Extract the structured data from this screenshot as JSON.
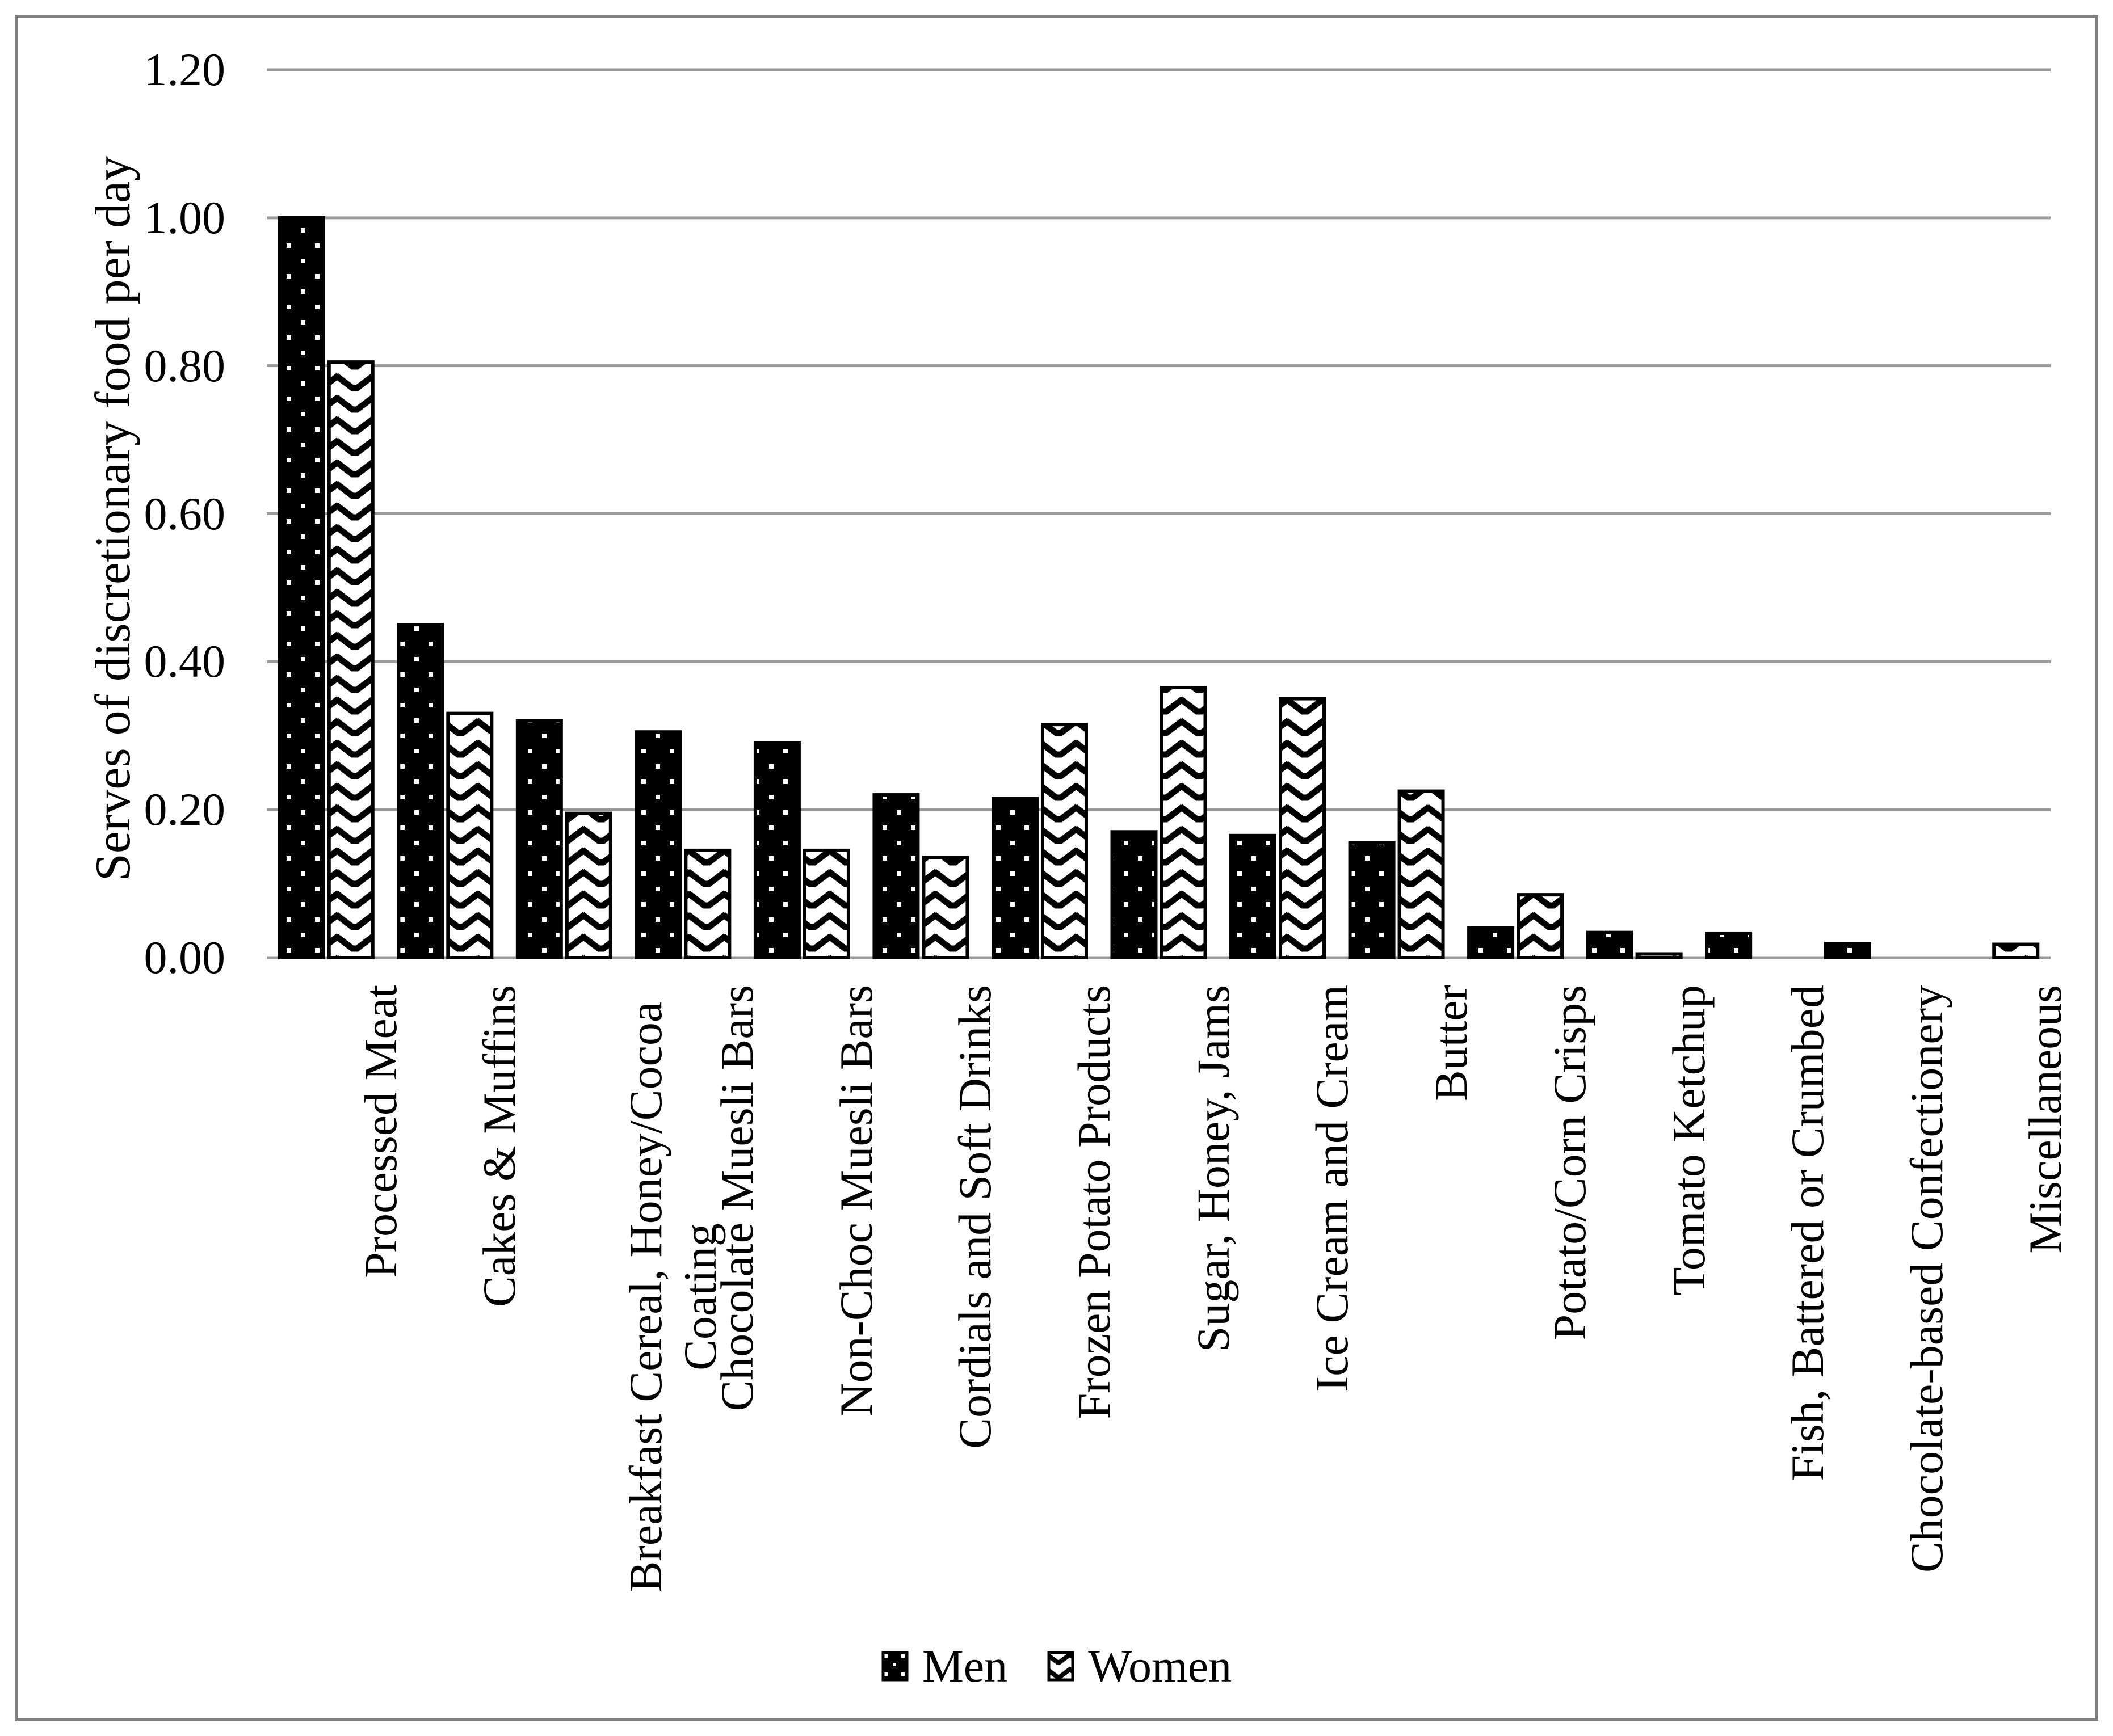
{
  "figure": {
    "background": "#ffffff",
    "border_color": "#808080",
    "gridline_color": "#9a9a9a",
    "bar_outline_color": "#000000",
    "men_swatch": "black fill with white dots pattern",
    "women_swatch": "white fill with black chevron wave pattern"
  },
  "chart_data": {
    "type": "bar",
    "title": "",
    "xlabel": "",
    "ylabel": "Serves of discretionary food per day",
    "ylim": [
      0,
      1.2
    ],
    "grid": true,
    "legend_position": "bottom",
    "y_ticks": [
      "1.20",
      "1.00",
      "0.80",
      "0.60",
      "0.40",
      "0.20",
      "0.00"
    ],
    "categories": [
      "Processed Meat",
      "Cakes & Muffins",
      "Breakfast Cereal, Honey/Cocoa\nCoating",
      "Chocolate Muesli Bars",
      "Non-Choc Muesli Bars",
      "Cordials and Soft Drinks",
      "Frozen Potato Products",
      "Sugar, Honey, Jams",
      "Ice Cream and Cream",
      "Butter",
      "Potato/Corn Crisps",
      "Tomato Ketchup",
      "Fish, Battered or Crumbed",
      "Chocolate-based Confectionery",
      "Miscellaneous"
    ],
    "series": [
      {
        "name": "Men",
        "pattern": "white-dots-on-black",
        "values": [
          1.0,
          0.45,
          0.32,
          0.305,
          0.29,
          0.22,
          0.215,
          0.17,
          0.165,
          0.155,
          0.04,
          0.034,
          0.033,
          0.019,
          0
        ]
      },
      {
        "name": "Women",
        "pattern": "black-chevron-on-white",
        "values": [
          0.805,
          0.33,
          0.195,
          0.145,
          0.145,
          0.135,
          0.315,
          0.365,
          0.35,
          0.225,
          0.085,
          0.005,
          0,
          0,
          0.018
        ]
      }
    ]
  }
}
